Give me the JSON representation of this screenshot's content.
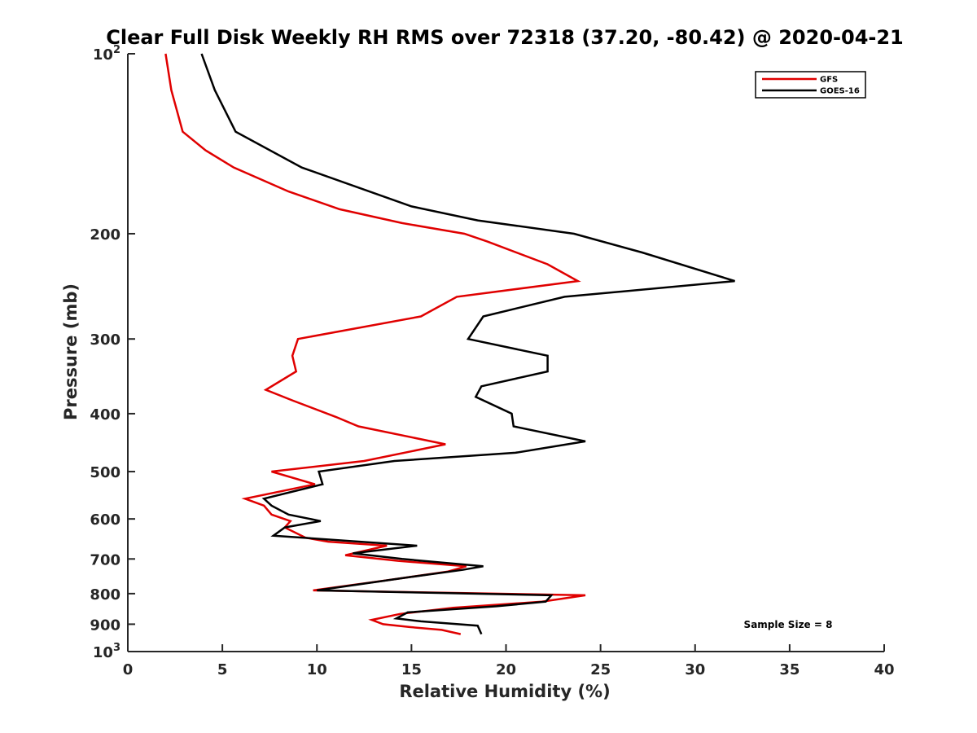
{
  "chart_data": {
    "type": "line",
    "title": "Clear Full Disk Weekly RH RMS over 72318 (37.20, -80.42) @ 2020-04-21",
    "xlabel": "Relative Humidity (%)",
    "ylabel": "Pressure (mb)",
    "xlim": [
      0,
      40
    ],
    "ylim": [
      100,
      1000
    ],
    "y_scale": "log",
    "y_reversed": true,
    "x_ticks": [
      "0",
      "5",
      "10",
      "15",
      "20",
      "25",
      "30",
      "35",
      "40"
    ],
    "y_ticks": [
      {
        "value": 100,
        "base": "10",
        "exp": "2"
      },
      {
        "value": 200,
        "label": "200"
      },
      {
        "value": 300,
        "label": "300"
      },
      {
        "value": 400,
        "label": "400"
      },
      {
        "value": 500,
        "label": "500"
      },
      {
        "value": 600,
        "label": "600"
      },
      {
        "value": 700,
        "label": "700"
      },
      {
        "value": 800,
        "label": "800"
      },
      {
        "value": 900,
        "label": "900"
      },
      {
        "value": 1000,
        "base": "10",
        "exp": "3"
      }
    ],
    "grid": false,
    "legend_position": "top-right",
    "annotation": "Sample Size = 8",
    "series": [
      {
        "name": "GFS",
        "color": "#e00000",
        "points": [
          [
            2.0,
            100
          ],
          [
            2.3,
            115
          ],
          [
            2.9,
            135
          ],
          [
            4.1,
            145
          ],
          [
            5.6,
            155
          ],
          [
            8.5,
            170
          ],
          [
            11.2,
            182
          ],
          [
            14.5,
            192
          ],
          [
            17.8,
            200
          ],
          [
            19.0,
            206
          ],
          [
            22.2,
            225
          ],
          [
            23.8,
            240
          ],
          [
            17.4,
            255
          ],
          [
            15.5,
            275
          ],
          [
            9.0,
            300
          ],
          [
            8.7,
            320
          ],
          [
            8.9,
            340
          ],
          [
            7.3,
            365
          ],
          [
            8.7,
            380
          ],
          [
            11.0,
            405
          ],
          [
            12.2,
            420
          ],
          [
            16.8,
            450
          ],
          [
            12.5,
            480
          ],
          [
            7.6,
            500
          ],
          [
            9.9,
            525
          ],
          [
            6.2,
            555
          ],
          [
            7.2,
            570
          ],
          [
            7.6,
            590
          ],
          [
            8.6,
            605
          ],
          [
            8.3,
            620
          ],
          [
            9.4,
            645
          ],
          [
            10.6,
            655
          ],
          [
            13.7,
            665
          ],
          [
            11.5,
            690
          ],
          [
            14.3,
            705
          ],
          [
            17.9,
            720
          ],
          [
            16.9,
            735
          ],
          [
            13.7,
            760
          ],
          [
            9.8,
            790
          ],
          [
            24.2,
            805
          ],
          [
            21.9,
            825
          ],
          [
            17.2,
            845
          ],
          [
            14.4,
            865
          ],
          [
            12.9,
            885
          ],
          [
            13.5,
            900
          ],
          [
            14.9,
            910
          ],
          [
            16.6,
            920
          ],
          [
            17.6,
            935
          ]
        ]
      },
      {
        "name": "GOES-16",
        "color": "#000000",
        "points": [
          [
            3.9,
            100
          ],
          [
            4.6,
            115
          ],
          [
            5.7,
            135
          ],
          [
            9.2,
            155
          ],
          [
            15.0,
            180
          ],
          [
            18.5,
            190
          ],
          [
            23.6,
            200
          ],
          [
            27.2,
            215
          ],
          [
            32.1,
            240
          ],
          [
            23.1,
            255
          ],
          [
            18.8,
            275
          ],
          [
            18.0,
            300
          ],
          [
            22.2,
            320
          ],
          [
            22.2,
            340
          ],
          [
            18.7,
            360
          ],
          [
            18.4,
            375
          ],
          [
            20.3,
            400
          ],
          [
            20.4,
            420
          ],
          [
            24.2,
            445
          ],
          [
            20.5,
            465
          ],
          [
            14.1,
            480
          ],
          [
            10.1,
            500
          ],
          [
            10.3,
            525
          ],
          [
            7.2,
            555
          ],
          [
            7.6,
            570
          ],
          [
            8.5,
            590
          ],
          [
            10.2,
            605
          ],
          [
            8.3,
            620
          ],
          [
            7.7,
            640
          ],
          [
            15.3,
            665
          ],
          [
            11.9,
            685
          ],
          [
            14.5,
            700
          ],
          [
            18.8,
            720
          ],
          [
            17.7,
            730
          ],
          [
            15.0,
            750
          ],
          [
            10.0,
            790
          ],
          [
            22.4,
            805
          ],
          [
            22.1,
            825
          ],
          [
            19.5,
            840
          ],
          [
            14.8,
            860
          ],
          [
            14.2,
            880
          ],
          [
            15.5,
            890
          ],
          [
            18.5,
            905
          ],
          [
            18.6,
            920
          ],
          [
            18.7,
            935
          ]
        ]
      }
    ]
  }
}
